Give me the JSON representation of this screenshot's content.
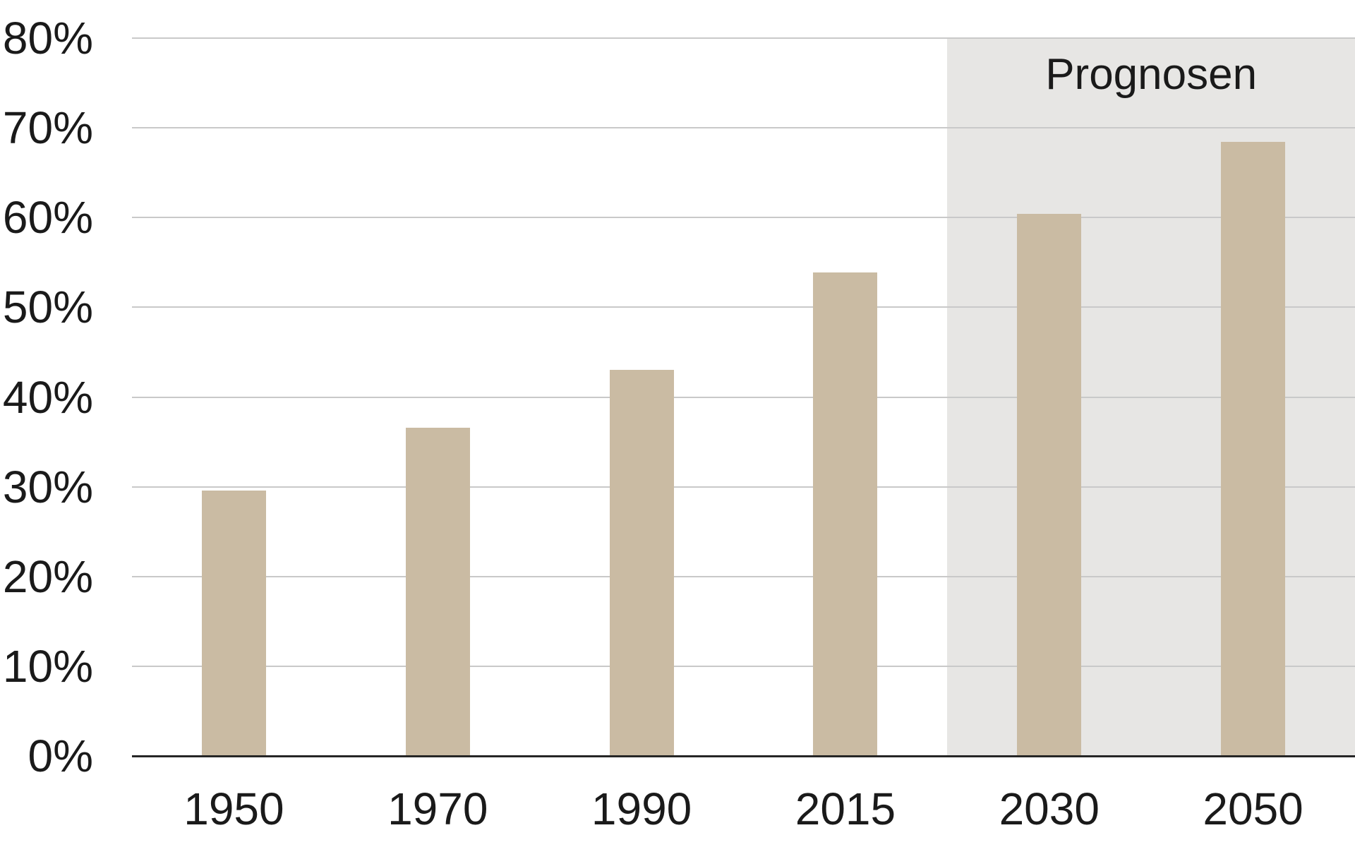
{
  "chart_data": {
    "type": "bar",
    "title": "",
    "xlabel": "",
    "ylabel": "",
    "categories": [
      "1950",
      "1970",
      "1990",
      "2015",
      "2030",
      "2050"
    ],
    "values": [
      29.6,
      36.6,
      43.0,
      53.9,
      60.4,
      68.4
    ],
    "unit": "%",
    "ylim": [
      0,
      80
    ],
    "ytick_step": 10,
    "ytick_labels": [
      "0%",
      "10%",
      "20%",
      "30%",
      "40%",
      "50%",
      "60%",
      "70%",
      "80%"
    ],
    "grid": true,
    "legend": "none",
    "annotations": [
      {
        "text": "Prognosen",
        "region_categories": [
          "2030",
          "2050"
        ],
        "position": "top-center-of-forecast-region"
      }
    ],
    "colors": {
      "bar": "#cabba3",
      "forecast_background": "#e7e6e4",
      "gridline": "#c9c9c9",
      "axis": "#262626",
      "text": "#1a1a1a"
    }
  }
}
